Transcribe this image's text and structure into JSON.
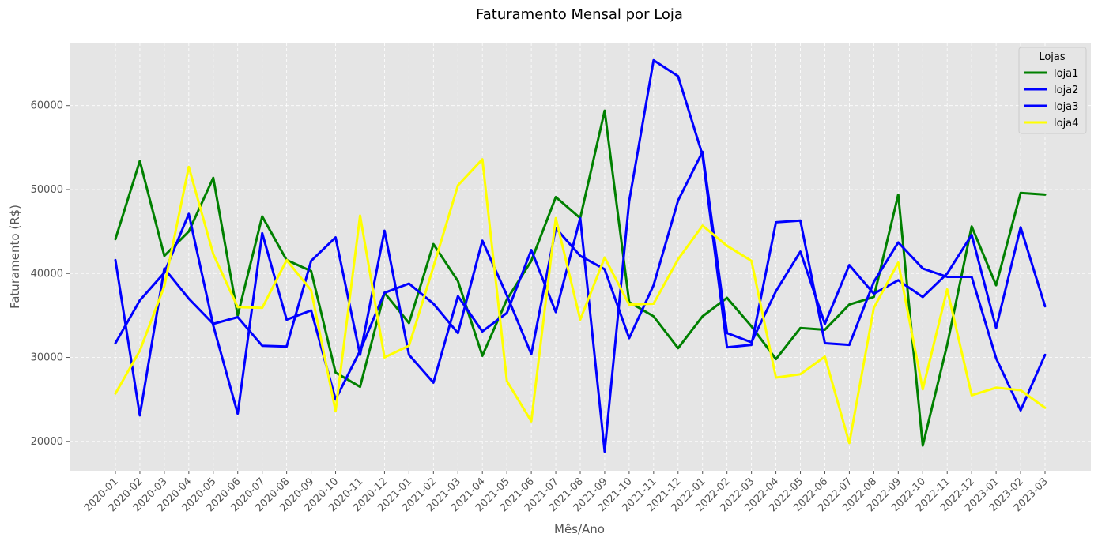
{
  "chart_data": {
    "type": "line",
    "title": "Faturamento Mensal por Loja",
    "xlabel": "Mês/Ano",
    "ylabel": "Faturamento (R$)",
    "ylim": [
      16500,
      67500
    ],
    "yticks": [
      "20000",
      "30000",
      "40000",
      "50000",
      "60000"
    ],
    "grid": true,
    "legend": {
      "title": "Lojas",
      "placement": "top-right"
    },
    "categories": [
      "2020-01",
      "2020-02",
      "2020-03",
      "2020-04",
      "2020-05",
      "2020-06",
      "2020-07",
      "2020-08",
      "2020-09",
      "2020-10",
      "2020-11",
      "2020-12",
      "2021-01",
      "2021-02",
      "2021-03",
      "2021-04",
      "2021-05",
      "2021-06",
      "2021-07",
      "2021-08",
      "2021-09",
      "2021-10",
      "2021-11",
      "2021-12",
      "2022-01",
      "2022-02",
      "2022-03",
      "2022-04",
      "2022-05",
      "2022-06",
      "2022-07",
      "2022-08",
      "2022-09",
      "2022-10",
      "2022-11",
      "2022-12",
      "2023-01",
      "2023-02",
      "2023-03"
    ],
    "series": [
      {
        "name": "loja1",
        "color": "#008000",
        "values": [
          44100,
          53400,
          42100,
          45000,
          51400,
          35000,
          46800,
          41600,
          40300,
          28200,
          26500,
          37700,
          34100,
          43500,
          39100,
          30200,
          36900,
          41500,
          49100,
          46600,
          59400,
          36600,
          34900,
          31100,
          34900,
          37100,
          33700,
          29800,
          33500,
          33300,
          36300,
          37200,
          49400,
          19500,
          31500,
          45600,
          38600,
          49600,
          49400
        ]
      },
      {
        "name": "loja2",
        "color": "#0000ff",
        "values": [
          41600,
          23100,
          40600,
          37000,
          34000,
          34800,
          31400,
          31300,
          41500,
          44300,
          30300,
          45100,
          30300,
          27000,
          37300,
          33100,
          35300,
          42800,
          35400,
          46600,
          18800,
          48600,
          65400,
          63500,
          54100,
          31200,
          31500,
          46100,
          46300,
          31700,
          31500,
          39000,
          43700,
          40600,
          39600,
          39600,
          29900,
          23700,
          30300
        ]
      },
      {
        "name": "loja3",
        "color": "#0000ff",
        "values": [
          31700,
          36800,
          40100,
          47100,
          33800,
          23300,
          44800,
          34500,
          35600,
          25000,
          30800,
          37700,
          38800,
          36400,
          32900,
          43900,
          37400,
          30400,
          45400,
          42100,
          40500,
          32300,
          38600,
          48700,
          54500,
          32900,
          31800,
          37900,
          42600,
          34000,
          41000,
          37600,
          39200,
          37200,
          40000,
          44600,
          33500,
          45500,
          36100
        ]
      },
      {
        "name": "loja4",
        "color": "#ffff00",
        "values": [
          25700,
          30800,
          38500,
          52700,
          42300,
          36000,
          35900,
          41600,
          38000,
          23600,
          46900,
          30000,
          31400,
          40800,
          50500,
          53600,
          27200,
          22400,
          46600,
          34500,
          41900,
          36300,
          36400,
          41700,
          45700,
          43300,
          41500,
          27600,
          28000,
          30100,
          19800,
          35900,
          41300,
          26200,
          38100,
          25500,
          26400,
          26100,
          24000
        ]
      }
    ]
  }
}
